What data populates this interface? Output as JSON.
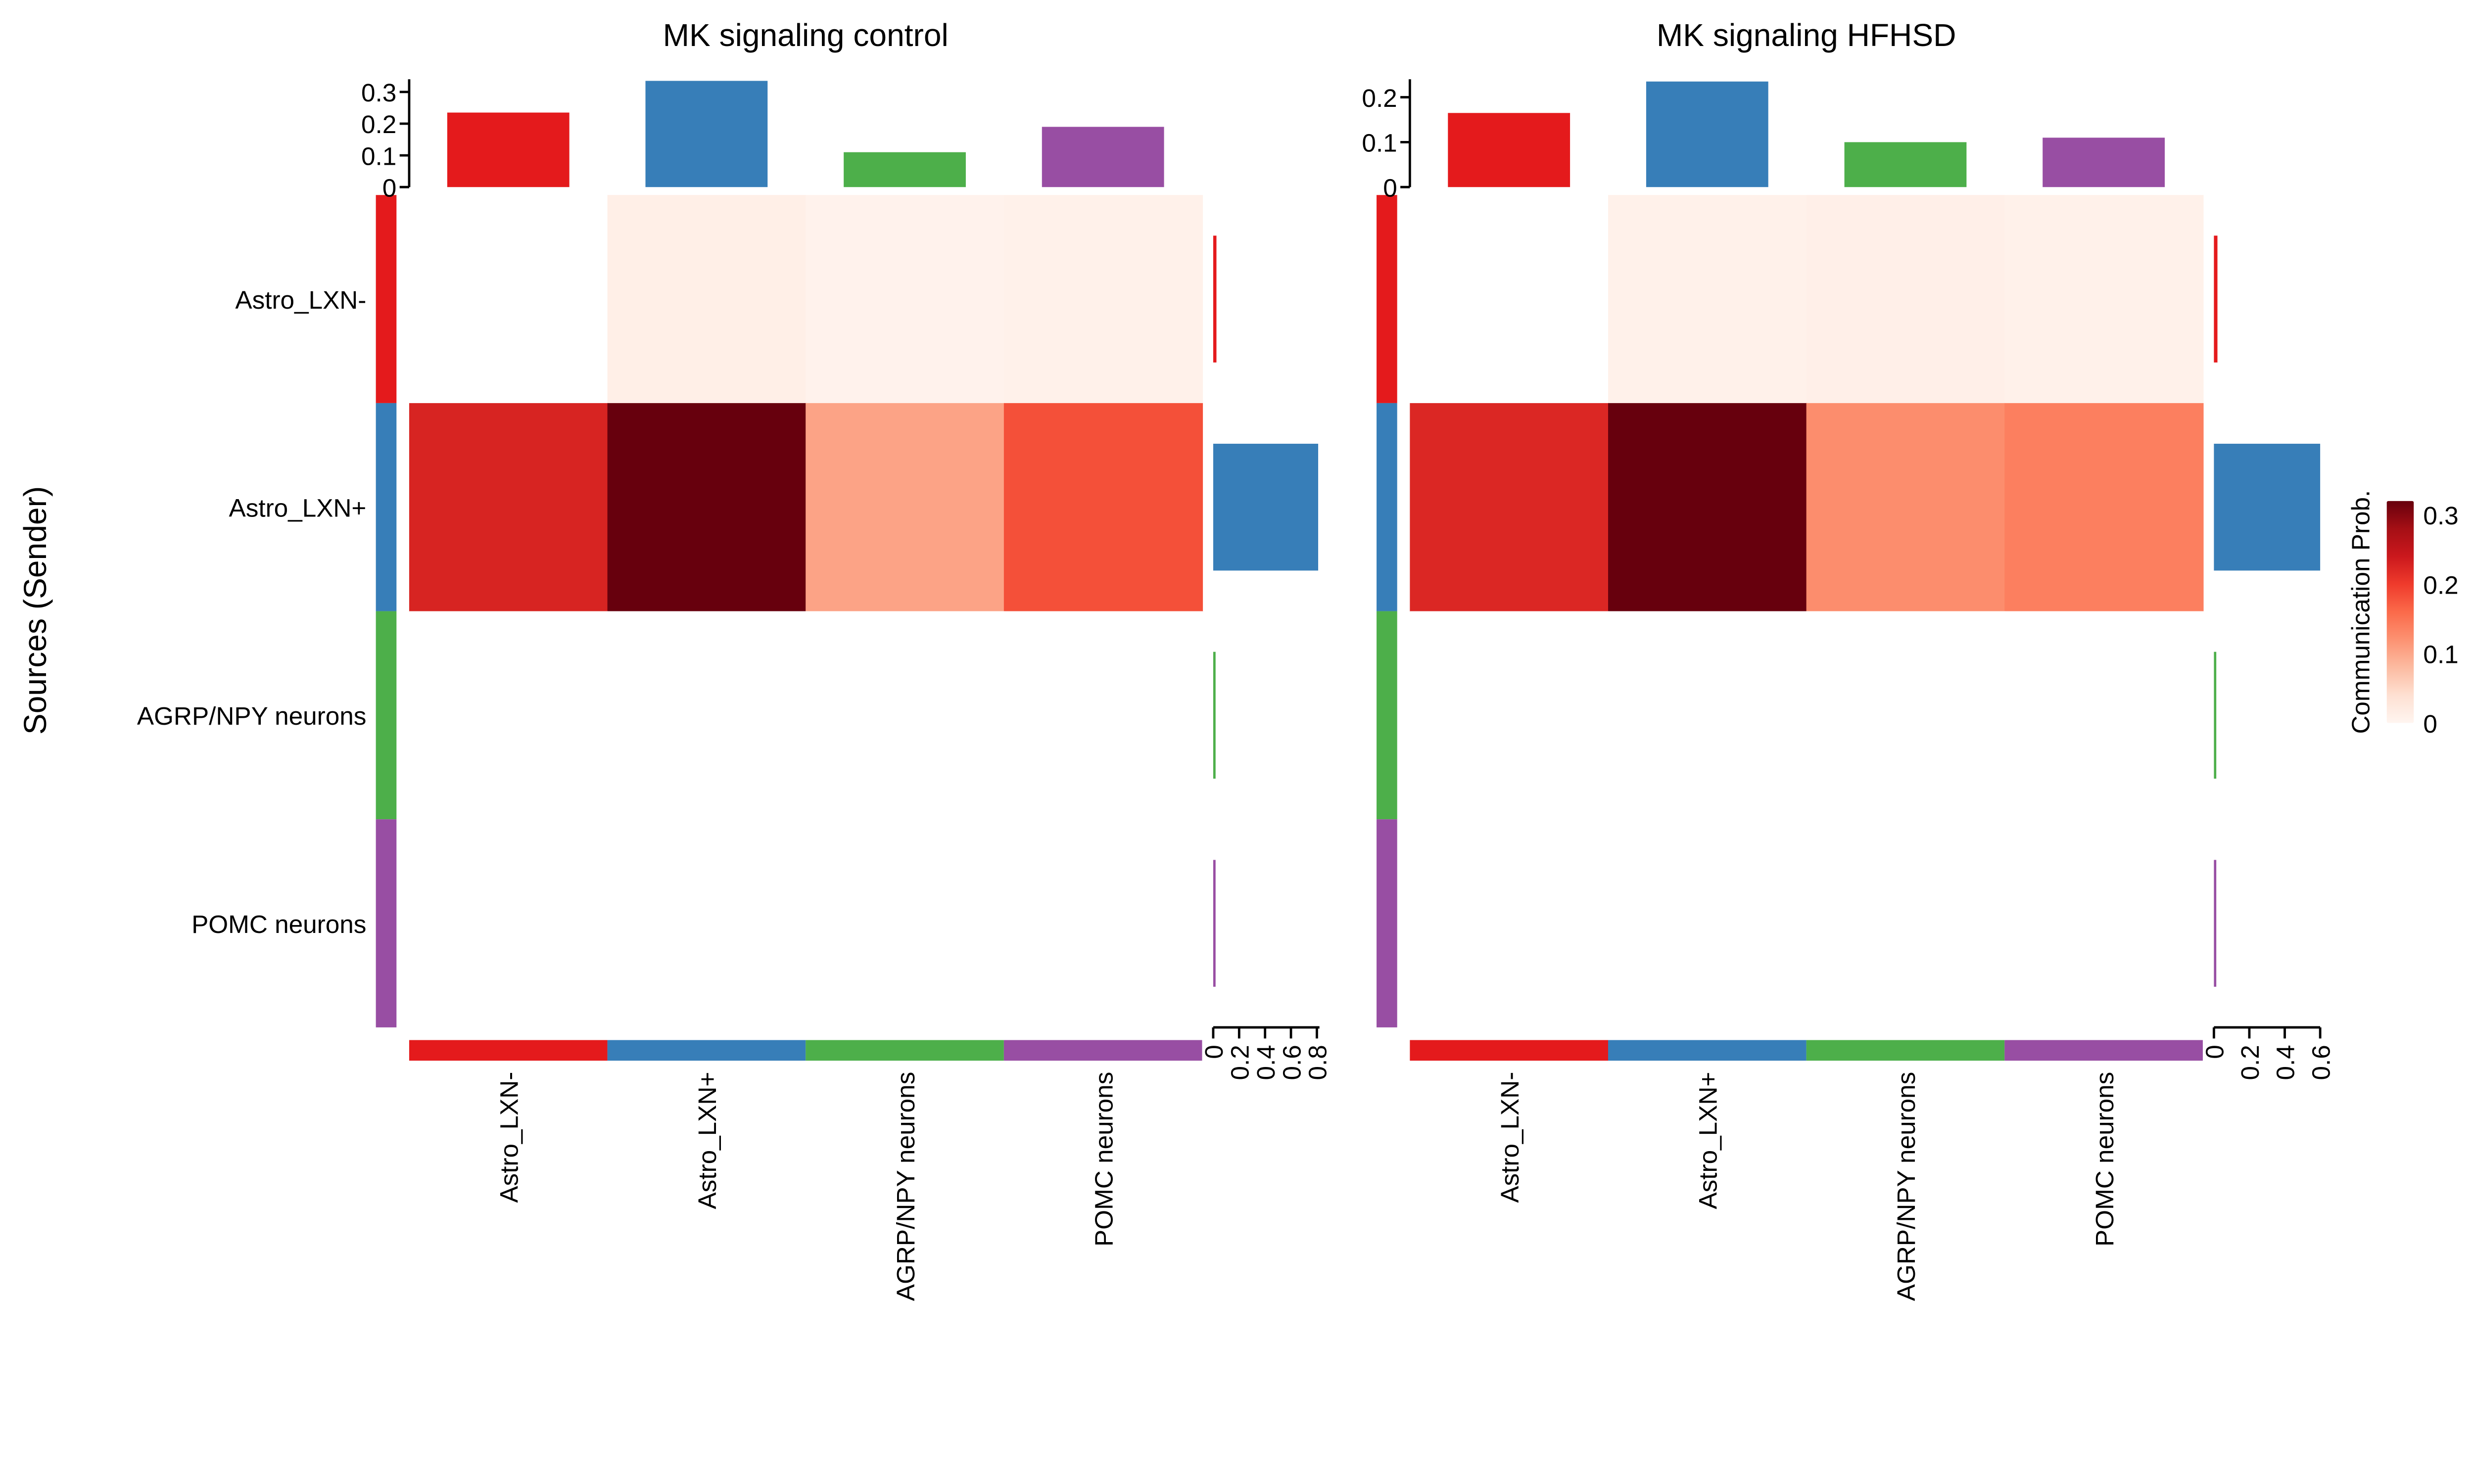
{
  "chart_data": [
    {
      "type": "heatmap",
      "title": "MK signaling  control",
      "ylabel": "Sources (Sender)",
      "rows": [
        "Astro_LXN-",
        "Astro_LXN+",
        "AGRP/NPY neurons",
        "POMC neurons"
      ],
      "columns": [
        "Astro_LXN-",
        "Astro_LXN+",
        "AGRP/NPY neurons",
        "POMC neurons"
      ],
      "values": [
        [
          0,
          0.012,
          0.005,
          0.008
        ],
        [
          0.23,
          0.325,
          0.105,
          0.185
        ],
        [
          0,
          0,
          0,
          0
        ],
        [
          0,
          0,
          0,
          0
        ]
      ],
      "top_bar": {
        "values": [
          0.235,
          0.335,
          0.11,
          0.19
        ],
        "ylim": [
          0,
          0.34
        ],
        "ticks": [
          "0",
          "0.1",
          "0.2",
          "0.3"
        ]
      },
      "right_bar": {
        "values": [
          0.025,
          0.81,
          0.004,
          0.004
        ],
        "xlim": [
          0,
          0.82
        ],
        "ticks": [
          "0",
          "0.2",
          "0.4",
          "0.6",
          "0.8"
        ]
      }
    },
    {
      "type": "heatmap",
      "title": "MK signaling  HFHSD",
      "rows": [
        "Astro_LXN-",
        "Astro_LXN+",
        "AGRP/NPY neurons",
        "POMC neurons"
      ],
      "columns": [
        "Astro_LXN-",
        "Astro_LXN+",
        "AGRP/NPY neurons",
        "POMC neurons"
      ],
      "values": [
        [
          0,
          0.006,
          0.008,
          0.006
        ],
        [
          0.16,
          0.23,
          0.09,
          0.1
        ],
        [
          0,
          0,
          0,
          0
        ],
        [
          0,
          0,
          0,
          0
        ]
      ],
      "top_bar": {
        "values": [
          0.165,
          0.235,
          0.1,
          0.11
        ],
        "ylim": [
          0,
          0.24
        ],
        "ticks": [
          "0",
          "0.1",
          "0.2"
        ]
      },
      "right_bar": {
        "values": [
          0.02,
          0.6,
          0.004,
          0.004
        ],
        "xlim": [
          0,
          0.6
        ],
        "ticks": [
          "0",
          "0.2",
          "0.4",
          "0.6"
        ]
      }
    }
  ],
  "legend": {
    "title": "Communication Prob.",
    "range": [
      0,
      0.32
    ],
    "ticks": [
      "0",
      "0.1",
      "0.2",
      "0.3"
    ]
  },
  "group_colors": [
    "#e41a1c",
    "#377eb8",
    "#4daf4a",
    "#984ea3"
  ],
  "palette": [
    "#fff5f0",
    "#fee0d2",
    "#fcbba1",
    "#fc9272",
    "#fb6a4a",
    "#ef3b2c",
    "#cb181d",
    "#a50f15",
    "#67000d"
  ]
}
